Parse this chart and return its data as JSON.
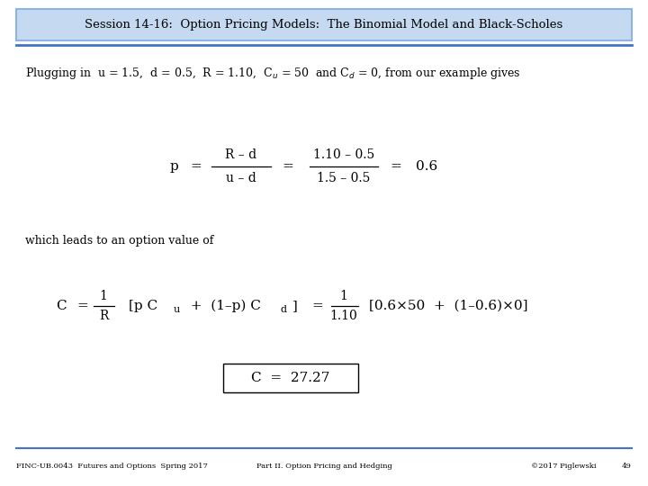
{
  "title": "Session 14-16:  Option Pricing Models:  The Binomial Model and Black-Scholes",
  "title_bg": "#c5d9f1",
  "title_border": "#8eb4e3",
  "slide_bg": "#ffffff",
  "footer_left": "FINC-UB.0043  Futures and Options  Spring 2017",
  "footer_mid": "Part II. Option Pricing and Hedging",
  "footer_right": "©2017 Piglewski",
  "footer_page": "49",
  "divider_color": "#4472c4",
  "footer_divider": "#4472c4"
}
